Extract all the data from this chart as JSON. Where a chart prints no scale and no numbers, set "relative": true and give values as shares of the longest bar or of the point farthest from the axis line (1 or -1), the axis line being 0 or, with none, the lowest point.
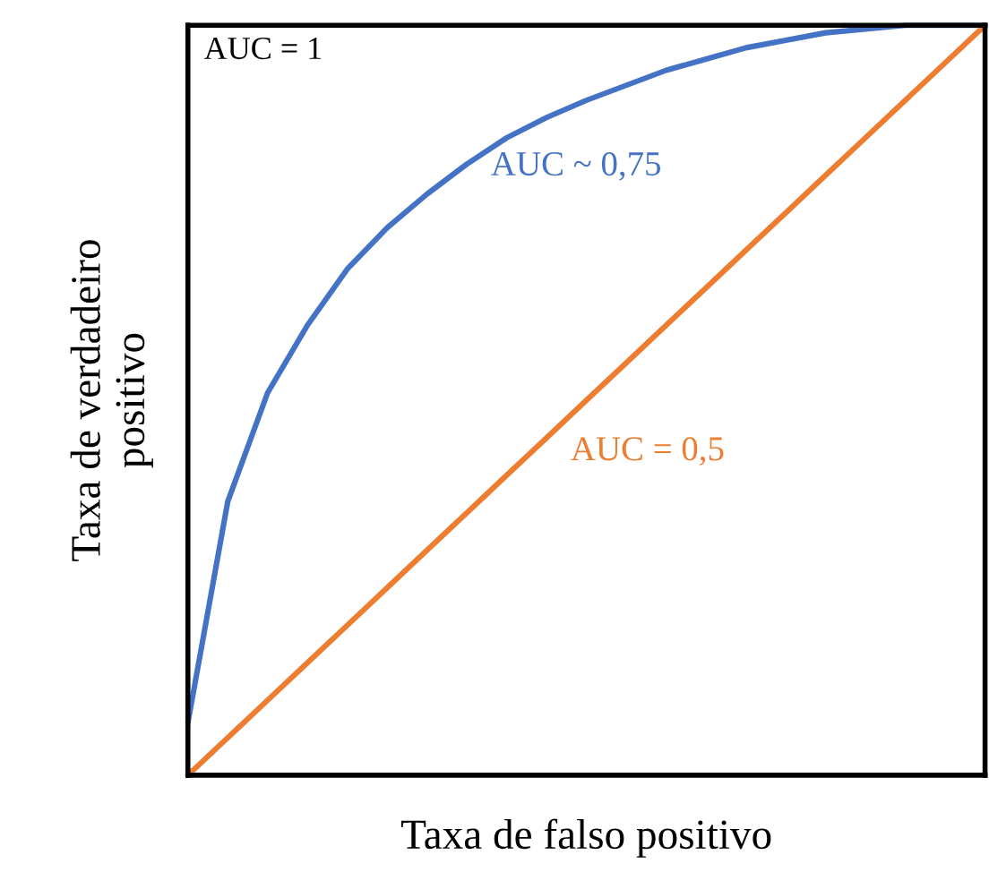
{
  "chart_data": {
    "type": "line",
    "relative": true,
    "xlabel": "Taxa de falso positivo",
    "ylabel": "Taxa de verdadeiro\npositivo",
    "annotations": [
      "AUC = 1"
    ],
    "legend": false,
    "marker": "none",
    "line_style": "solid",
    "categories": [
      null,
      null,
      null,
      null,
      null,
      null,
      null,
      null,
      null,
      null,
      null,
      null,
      null,
      null,
      null,
      null,
      null,
      null,
      null,
      null,
      null
    ],
    "series": [
      {
        "name": "AUC ~ 0,75",
        "color": "#4472c4",
        "values": [
          0.07,
          0.365,
          0.51,
          0.6,
          0.675,
          0.73,
          0.775,
          0.815,
          0.85,
          0.877,
          0.9,
          0.92,
          0.94,
          0.955,
          0.97,
          0.98,
          0.99,
          0.995,
          1.0,
          1.0,
          1.0
        ]
      },
      {
        "name": "AUC = 0,5",
        "color": "#ed7d31",
        "values": [
          0,
          0.05,
          0.1,
          0.15,
          0.2,
          0.25,
          0.3,
          0.35,
          0.4,
          0.45,
          0.5,
          0.55,
          0.6,
          0.65,
          0.7,
          0.75,
          0.8,
          0.85,
          0.9,
          0.95,
          1.0
        ]
      }
    ]
  }
}
